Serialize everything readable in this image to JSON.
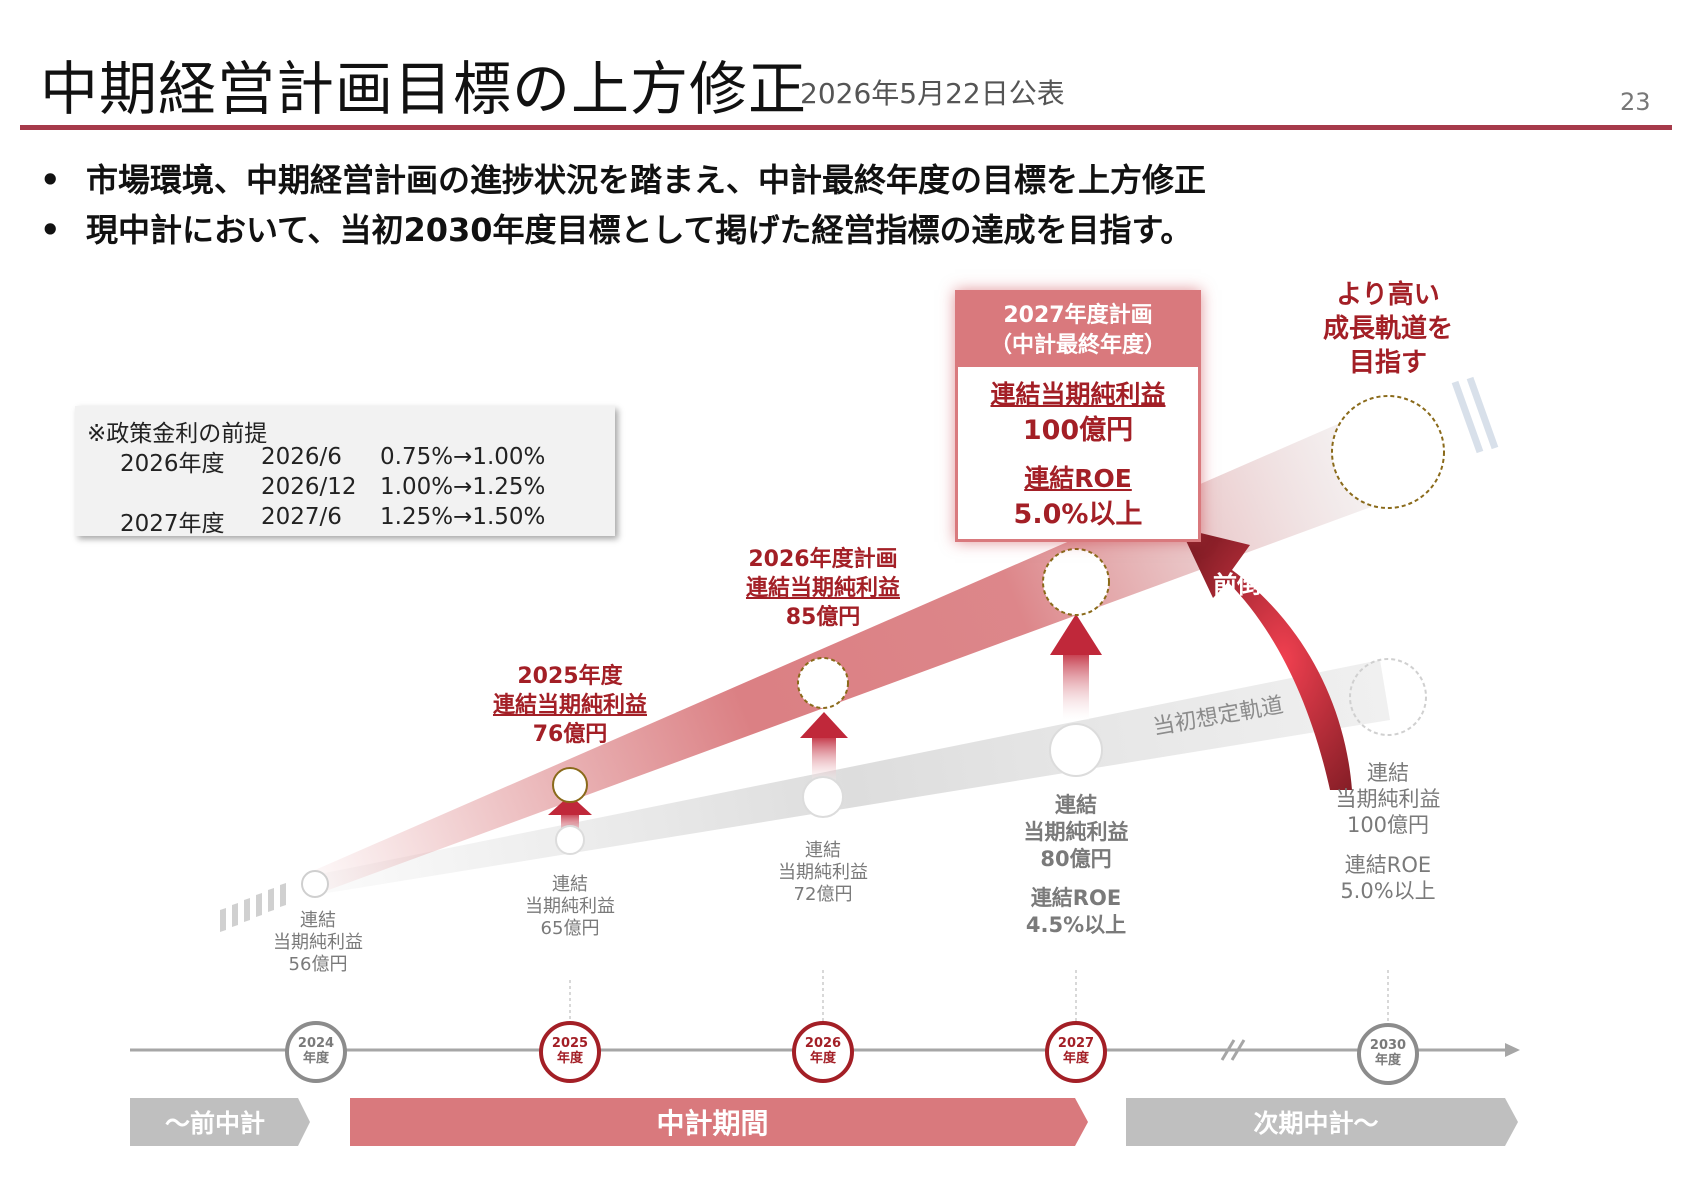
{
  "header": {
    "title": "中期経営計画目標の上方修正",
    "published": "2026年5月22日公表",
    "page_number": "23"
  },
  "bullets": [
    "市場環境、中期経営計画の進捗状況を踏まえ、中計最終年度の目標を上方修正",
    "現中計において、当初2030年度目標として掲げた経営指標の達成を目指す。"
  ],
  "bullet_marker": "•",
  "rate_note": {
    "title": "※政策金利の前提",
    "rows": [
      {
        "fy": "2026年度",
        "month": "2026/6",
        "change": "0.75%→1.00%"
      },
      {
        "fy": "",
        "month": "2026/12",
        "change": "1.00%→1.25%"
      },
      {
        "fy": "2027年度",
        "month": "2027/6",
        "change": "1.25%→1.50%"
      }
    ]
  },
  "plan_2027": {
    "header_line1": "2027年度計画",
    "header_line2": "（中計最終年度）",
    "metric1_label": "連結当期純利益",
    "metric1_value": "100億円",
    "metric2_label": "連結ROE",
    "metric2_value": "5.0%以上"
  },
  "plan_2026": {
    "line1": "2026年度計画",
    "line2": "連結当期純利益",
    "line3": "85億円"
  },
  "plan_2025": {
    "line1": "2025年度",
    "line2": "連結当期純利益",
    "line3": "76億円"
  },
  "higher_growth": {
    "line1": "より高い",
    "line2": "成長軌道を",
    "line3": "目指す"
  },
  "pull_forward": "前倒し",
  "initial_track": "当初想定軌道",
  "initial": {
    "fy2024": {
      "line1": "連結",
      "line2": "当期純利益",
      "line3": "56億円"
    },
    "fy2025": {
      "line1": "連結",
      "line2": "当期純利益",
      "line3": "65億円"
    },
    "fy2026": {
      "line1": "連結",
      "line2": "当期純利益",
      "line3": "72億円"
    },
    "fy2027": {
      "line1": "連結",
      "line2": "当期純利益",
      "line3": "80億円",
      "line4": "連結ROE",
      "line5": "4.5%以上"
    },
    "fy2030": {
      "line1": "連結",
      "line2": "当期純利益",
      "line3": "100億円",
      "line4": "連結ROE",
      "line5": "5.0%以上"
    }
  },
  "timeline": [
    {
      "year": "2024",
      "unit": "年度"
    },
    {
      "year": "2025",
      "unit": "年度"
    },
    {
      "year": "2026",
      "unit": "年度"
    },
    {
      "year": "2027",
      "unit": "年度"
    },
    {
      "year": "2030",
      "unit": "年度"
    }
  ],
  "periods": {
    "previous": "～前中計",
    "current": "中計期間",
    "next": "次期中計～"
  },
  "colors": {
    "accent": "#a63a4a",
    "red_text": "#a31f26",
    "band_red": "#d9797d",
    "gray": "#bfbfbf"
  }
}
